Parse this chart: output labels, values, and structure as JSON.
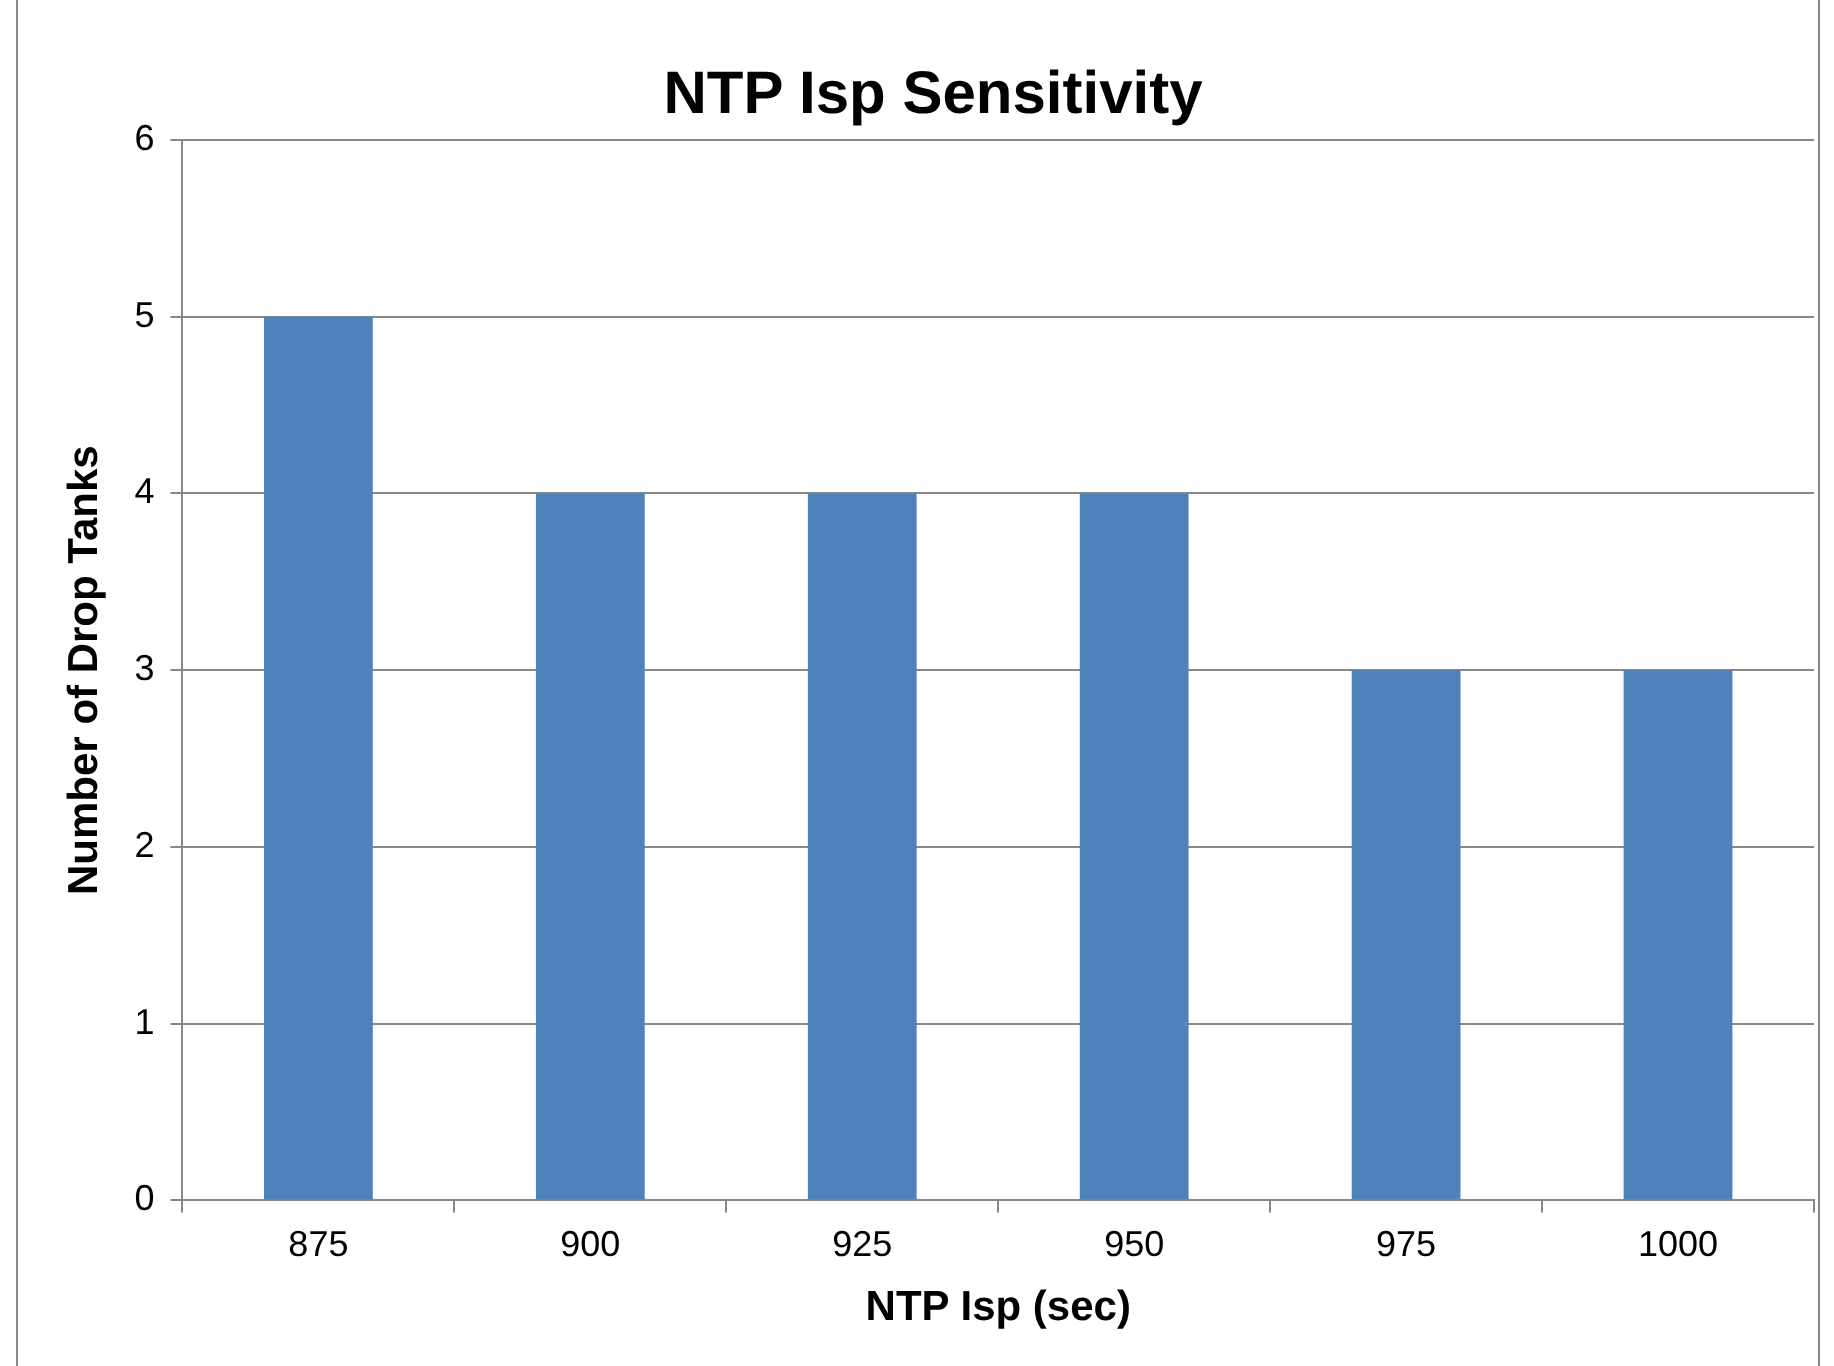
{
  "chart_data": {
    "type": "bar",
    "title": "NTP Isp Sensitivity",
    "xlabel": "NTP Isp (sec)",
    "ylabel": "Number of Drop Tanks",
    "categories": [
      "875",
      "900",
      "925",
      "950",
      "975",
      "1000"
    ],
    "values": [
      5,
      4,
      4,
      4,
      3,
      3
    ],
    "color": "#4f81bd",
    "ylim": [
      0,
      6
    ],
    "yticks": [
      0,
      1,
      2,
      3,
      4,
      5,
      6
    ],
    "grid": "y",
    "legend": false
  }
}
